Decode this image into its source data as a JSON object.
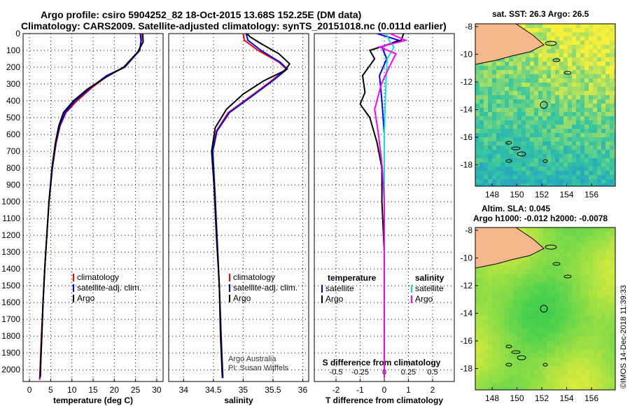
{
  "header": {
    "title_line1": "Argo profile: csiro 5904252_82 18-Oct-2015 13.68S 152.25E (DM data)",
    "title_line2": "Climatology: CARS2009. Satellite-adjusted climatology: synTS_20151018.nc (0.011d earlier)"
  },
  "maps": {
    "sst_title": "sat. SST: 26.3 Argo: 26.5",
    "sla_title1": "Altim. SLA: 0.045",
    "sla_title2": "Argo h1000: -0.012 h2000: -0.0078",
    "lon_ticks": [
      "148",
      "150",
      "152",
      "154",
      "156"
    ],
    "lat_ticks": [
      "-8",
      "-10",
      "-12",
      "-14",
      "-16",
      "-18"
    ],
    "colors": {
      "land": "#f5b88a",
      "ocean_dark": "#1a8cdb",
      "ocean_mid": "#35c6a0",
      "ocean_green": "#3fcf4f",
      "ocean_yellow": "#f6f03a"
    }
  },
  "credit": "©IMOS 14-Dec-2018 11:39:33",
  "footnotes": {
    "line1": "Argo Australia",
    "line2": "PI: Susan Wijffels"
  },
  "legend_main": {
    "items": [
      "climatology",
      "satellite-adj. clim.",
      "Argo"
    ],
    "colors": [
      "#ff0000",
      "#0000ff",
      "#000000"
    ]
  },
  "legend_diff": {
    "temp_header": "temperature",
    "sal_header": "salinity",
    "items": [
      "satellite",
      "Argo"
    ],
    "temp_colors": [
      "#0000ff",
      "#000000"
    ],
    "sal_colors": [
      "#00e5e5",
      "#ff00ff"
    ]
  },
  "chart_data": [
    {
      "type": "line",
      "title": "",
      "xlabel": "temperature (deg C)",
      "ylabel": "",
      "xlim": [
        -1.5,
        31.5
      ],
      "ylim": [
        2070,
        0
      ],
      "xticks": [
        "0",
        "5",
        "10",
        "15",
        "20",
        "25",
        "30"
      ],
      "xtick_values": [
        0,
        5,
        10,
        15,
        20,
        25,
        30
      ],
      "yticks": [
        "0",
        "100",
        "200",
        "300",
        "400",
        "500",
        "600",
        "700",
        "800",
        "900",
        "1000",
        "1100",
        "1200",
        "1300",
        "1400",
        "1500",
        "1600",
        "1700",
        "1800",
        "1900",
        "2000"
      ],
      "series": [
        {
          "name": "climatology",
          "color": "#ff0000",
          "points": [
            [
              26.3,
              0
            ],
            [
              26.4,
              40
            ],
            [
              25.9,
              100
            ],
            [
              22.5,
              200
            ],
            [
              18.5,
              250
            ],
            [
              14.8,
              320
            ],
            [
              11.2,
              400
            ],
            [
              8.6,
              470
            ],
            [
              7.2,
              550
            ],
            [
              6.3,
              650
            ],
            [
              5.4,
              800
            ],
            [
              4.6,
              1000
            ],
            [
              4.1,
              1200
            ],
            [
              3.6,
              1400
            ],
            [
              3.2,
              1600
            ],
            [
              2.8,
              1800
            ],
            [
              2.5,
              2000
            ],
            [
              2.4,
              2060
            ]
          ]
        },
        {
          "name": "satellite-adj. clim.",
          "color": "#0000ff",
          "points": [
            [
              26.1,
              0
            ],
            [
              26.3,
              40
            ],
            [
              26.0,
              100
            ],
            [
              22.4,
              200
            ],
            [
              18.2,
              250
            ],
            [
              14.5,
              320
            ],
            [
              10.8,
              400
            ],
            [
              8.4,
              470
            ],
            [
              7.1,
              550
            ],
            [
              6.2,
              650
            ],
            [
              5.4,
              800
            ],
            [
              4.6,
              1000
            ],
            [
              4.1,
              1200
            ],
            [
              3.6,
              1400
            ],
            [
              3.2,
              1600
            ],
            [
              2.9,
              1800
            ],
            [
              2.6,
              2000
            ],
            [
              2.5,
              2050
            ]
          ]
        },
        {
          "name": "Argo",
          "color": "#000000",
          "points": [
            [
              26.7,
              0
            ],
            [
              26.8,
              50
            ],
            [
              25.5,
              110
            ],
            [
              22.2,
              200
            ],
            [
              18.0,
              260
            ],
            [
              13.7,
              330
            ],
            [
              10.4,
              400
            ],
            [
              8.0,
              470
            ],
            [
              6.9,
              550
            ],
            [
              6.1,
              650
            ],
            [
              5.3,
              800
            ],
            [
              4.6,
              1000
            ],
            [
              4.1,
              1200
            ],
            [
              3.6,
              1400
            ],
            [
              3.2,
              1600
            ],
            [
              2.9,
              1800
            ],
            [
              2.6,
              2000
            ],
            [
              2.6,
              2040
            ]
          ]
        }
      ]
    },
    {
      "type": "line",
      "title": "",
      "xlabel": "salinity",
      "ylabel": "",
      "xlim": [
        33.75,
        36.1
      ],
      "ylim": [
        2070,
        0
      ],
      "xticks": [
        "34",
        "34.5",
        "35",
        "35.5",
        "36"
      ],
      "xtick_values": [
        34,
        34.5,
        35,
        35.5,
        36
      ],
      "series": [
        {
          "name": "climatology",
          "color": "#ff0000",
          "points": [
            [
              35.0,
              0
            ],
            [
              35.02,
              40
            ],
            [
              35.25,
              100
            ],
            [
              35.6,
              170
            ],
            [
              35.72,
              210
            ],
            [
              35.48,
              280
            ],
            [
              35.1,
              380
            ],
            [
              34.75,
              470
            ],
            [
              34.55,
              580
            ],
            [
              34.48,
              700
            ],
            [
              34.52,
              900
            ],
            [
              34.56,
              1200
            ],
            [
              34.6,
              1500
            ],
            [
              34.63,
              1800
            ],
            [
              34.65,
              2050
            ]
          ]
        },
        {
          "name": "satellite-adj. clim.",
          "color": "#0000ff",
          "points": [
            [
              35.05,
              0
            ],
            [
              35.08,
              40
            ],
            [
              35.3,
              100
            ],
            [
              35.62,
              170
            ],
            [
              35.74,
              210
            ],
            [
              35.5,
              280
            ],
            [
              35.12,
              380
            ],
            [
              34.77,
              470
            ],
            [
              34.56,
              580
            ],
            [
              34.49,
              700
            ],
            [
              34.52,
              900
            ],
            [
              34.56,
              1200
            ],
            [
              34.6,
              1500
            ],
            [
              34.63,
              1800
            ],
            [
              34.66,
              2050
            ]
          ]
        },
        {
          "name": "Argo",
          "color": "#000000",
          "points": [
            [
              35.06,
              0
            ],
            [
              35.12,
              20
            ],
            [
              35.3,
              60
            ],
            [
              35.45,
              90
            ],
            [
              35.6,
              120
            ],
            [
              35.78,
              180
            ],
            [
              35.7,
              220
            ],
            [
              35.35,
              280
            ],
            [
              35.0,
              360
            ],
            [
              34.72,
              450
            ],
            [
              34.53,
              560
            ],
            [
              34.47,
              700
            ],
            [
              34.51,
              900
            ],
            [
              34.55,
              1200
            ],
            [
              34.6,
              1500
            ],
            [
              34.62,
              1800
            ],
            [
              34.65,
              2040
            ]
          ]
        }
      ]
    },
    {
      "type": "line",
      "title": "",
      "xlabel": "T difference from climatology",
      "xlabel2": "S difference from climatology",
      "xlim": [
        -2.9,
        2.9
      ],
      "ylim": [
        2070,
        0
      ],
      "xticks": [
        "-2",
        "-1",
        "0",
        "1",
        "2"
      ],
      "xtick_values": [
        -2,
        -1,
        0,
        1,
        2
      ],
      "xticks_top": [
        "-0.5",
        "-0.25",
        "0",
        "0.25",
        "0.5"
      ],
      "xtick_top_values": [
        -0.5,
        -0.25,
        0,
        0.25,
        0.5
      ],
      "series": [
        {
          "name": "temperature satellite",
          "color": "#0000ff",
          "scale": "T",
          "points": [
            [
              -0.3,
              0
            ],
            [
              0.6,
              40
            ],
            [
              -0.1,
              80
            ],
            [
              0.1,
              150
            ],
            [
              -0.2,
              250
            ],
            [
              -0.1,
              400
            ],
            [
              0,
              600
            ],
            [
              0,
              1000
            ],
            [
              0,
              2050
            ]
          ]
        },
        {
          "name": "temperature Argo",
          "color": "#000000",
          "scale": "T",
          "points": [
            [
              0.8,
              0
            ],
            [
              0.7,
              40
            ],
            [
              -0.6,
              100
            ],
            [
              -0.4,
              150
            ],
            [
              -0.9,
              250
            ],
            [
              -0.8,
              350
            ],
            [
              -1.0,
              420
            ],
            [
              -0.6,
              500
            ],
            [
              -0.3,
              650
            ],
            [
              -0.1,
              800
            ],
            [
              -0.1,
              1000
            ],
            [
              0,
              1300
            ],
            [
              0,
              2050
            ]
          ]
        },
        {
          "name": "salinity satellite",
          "color": "#00e5e5",
          "scale": "S",
          "points": [
            [
              0.02,
              0
            ],
            [
              0.05,
              40
            ],
            [
              0.1,
              80
            ],
            [
              0.03,
              150
            ],
            [
              0.02,
              250
            ],
            [
              0.01,
              400
            ],
            [
              0,
              600
            ],
            [
              0,
              2050
            ]
          ]
        },
        {
          "name": "salinity Argo",
          "color": "#ff00ff",
          "scale": "S",
          "points": [
            [
              0.06,
              0
            ],
            [
              0.22,
              40
            ],
            [
              -0.05,
              80
            ],
            [
              0.12,
              120
            ],
            [
              0.05,
              200
            ],
            [
              -0.03,
              300
            ],
            [
              -0.1,
              450
            ],
            [
              -0.06,
              600
            ],
            [
              -0.02,
              800
            ],
            [
              0,
              1000
            ],
            [
              0,
              2050
            ]
          ]
        }
      ]
    }
  ]
}
